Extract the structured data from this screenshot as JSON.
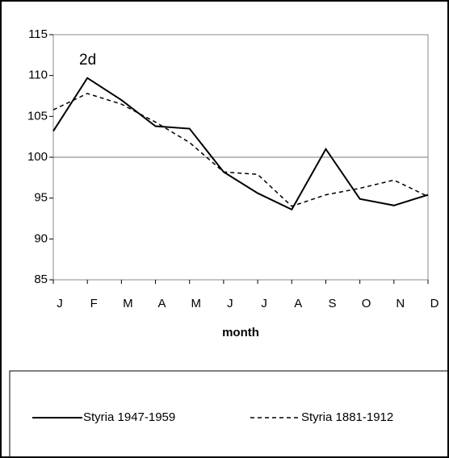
{
  "chart_data": {
    "type": "line",
    "annotation": "2d",
    "x_label": "month",
    "categories": [
      "J",
      "F",
      "M",
      "A",
      "M",
      "J",
      "J",
      "A",
      "S",
      "O",
      "N",
      "D"
    ],
    "series": [
      {
        "name": "Styria 1947-1959",
        "color": "#000000",
        "dash": false,
        "values": [
          103.2,
          109.7,
          107,
          103.8,
          103.5,
          98.2,
          95.6,
          93.6,
          101,
          94.9,
          94.1,
          95.4
        ]
      },
      {
        "name": "Styria 1881-1912",
        "color": "#000000",
        "dash": true,
        "values": [
          105.8,
          107.8,
          106.5,
          104.3,
          101.8,
          98.2,
          97.9,
          94,
          95.4,
          96.2,
          97.2,
          95.2
        ]
      }
    ],
    "ylim": [
      85,
      115
    ],
    "yticks": [
      85,
      90,
      95,
      100,
      105,
      110,
      115
    ],
    "reference_line": 100
  }
}
